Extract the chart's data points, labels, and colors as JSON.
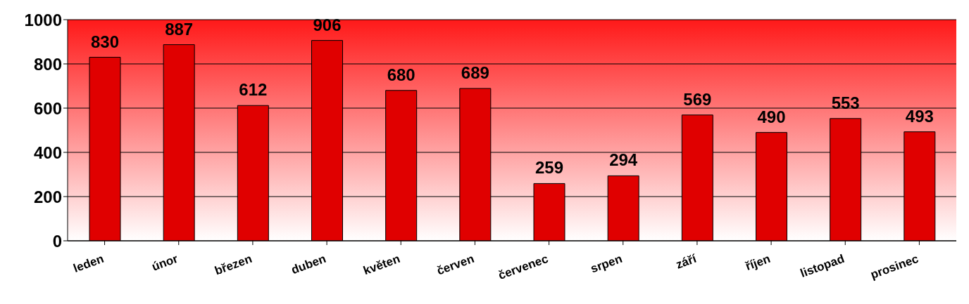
{
  "chart_data": {
    "type": "bar",
    "categories": [
      "leden",
      "únor",
      "březen",
      "duben",
      "květen",
      "červen",
      "červenec",
      "srpen",
      "září",
      "říjen",
      "listopad",
      "prosinec"
    ],
    "values": [
      830,
      887,
      612,
      906,
      680,
      689,
      259,
      294,
      569,
      490,
      553,
      493
    ],
    "color": "#e00000",
    "ylim": [
      0,
      1000
    ],
    "yticks": [
      0,
      200,
      400,
      600,
      800,
      1000
    ],
    "grid": "y",
    "data_labels": true
  }
}
